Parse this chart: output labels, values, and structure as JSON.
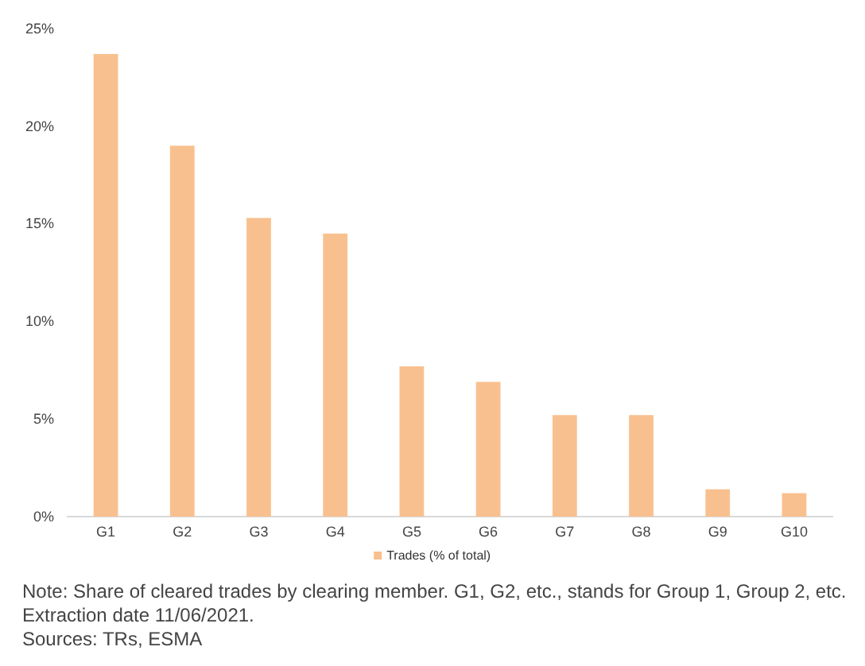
{
  "chart_data": {
    "type": "bar",
    "categories": [
      "G1",
      "G2",
      "G3",
      "G4",
      "G5",
      "G6",
      "G7",
      "G8",
      "G9",
      "G10"
    ],
    "series": [
      {
        "name": "Trades (% of total)",
        "color": "#f9c08f",
        "values": [
          23.7,
          19.0,
          15.3,
          14.5,
          7.7,
          6.9,
          5.2,
          5.2,
          1.4,
          1.2
        ]
      }
    ],
    "ylim": [
      0,
      25
    ],
    "yticks": [
      {
        "value": 0,
        "label": "0%"
      },
      {
        "value": 5,
        "label": "5%"
      },
      {
        "value": 10,
        "label": "10%"
      },
      {
        "value": 15,
        "label": "15%"
      },
      {
        "value": 20,
        "label": "20%"
      },
      {
        "value": 25,
        "label": "25%"
      }
    ],
    "grid": false,
    "legend": "bottom",
    "annotations": [
      "Note: Share of cleared trades by clearing member. G1, G2, etc., stands for Group 1, Group 2, etc. Extraction date 11/06/2021.",
      "Sources: TRs, ESMA"
    ]
  }
}
